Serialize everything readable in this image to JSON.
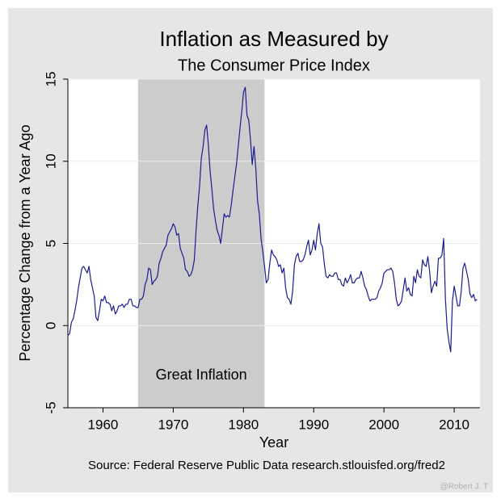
{
  "chart_data": {
    "type": "line",
    "title": "Inflation as Measured by",
    "subtitle": "The Consumer Price Index",
    "xlabel": "Year",
    "ylabel": "Percentage Change from a Year Ago",
    "source": "Source: Federal Reserve Public Data research.stlouisfed.org/fred2",
    "watermark": "@Robert J. T",
    "color": "#1c1c8f",
    "grid": true,
    "xlim": [
      1955,
      2013.67
    ],
    "ylim": [
      -5,
      15
    ],
    "xticks": [
      1960,
      1970,
      1980,
      1990,
      2000,
      2010
    ],
    "yticks": [
      -5,
      0,
      5,
      10,
      15
    ],
    "shaded_region": {
      "label": "Great Inflation",
      "xrange": [
        1965,
        1983
      ],
      "color": "#cccccc"
    },
    "x": [
      1955,
      1955.25,
      1955.5,
      1955.75,
      1956,
      1956.25,
      1956.5,
      1956.75,
      1957,
      1957.25,
      1957.5,
      1957.75,
      1958,
      1958.25,
      1958.5,
      1958.75,
      1959,
      1959.25,
      1959.5,
      1959.75,
      1960,
      1960.25,
      1960.5,
      1960.75,
      1961,
      1961.25,
      1961.5,
      1961.75,
      1962,
      1962.25,
      1962.5,
      1962.75,
      1963,
      1963.25,
      1963.5,
      1963.75,
      1964,
      1964.25,
      1964.5,
      1964.75,
      1965,
      1965.25,
      1965.5,
      1965.75,
      1966,
      1966.25,
      1966.5,
      1966.75,
      1967,
      1967.25,
      1967.5,
      1967.75,
      1968,
      1968.25,
      1968.5,
      1968.75,
      1969,
      1969.25,
      1969.5,
      1969.75,
      1970,
      1970.25,
      1970.5,
      1970.75,
      1971,
      1971.25,
      1971.5,
      1971.75,
      1972,
      1972.25,
      1972.5,
      1972.75,
      1973,
      1973.25,
      1973.5,
      1973.75,
      1974,
      1974.25,
      1974.5,
      1974.75,
      1975,
      1975.25,
      1975.5,
      1975.75,
      1976,
      1976.25,
      1976.5,
      1976.75,
      1977,
      1977.25,
      1977.5,
      1977.75,
      1978,
      1978.25,
      1978.5,
      1978.75,
      1979,
      1979.25,
      1979.5,
      1979.75,
      1980,
      1980.25,
      1980.5,
      1980.75,
      1981,
      1981.25,
      1981.5,
      1981.75,
      1982,
      1982.25,
      1982.5,
      1982.75,
      1983,
      1983.25,
      1983.5,
      1983.75,
      1984,
      1984.25,
      1984.5,
      1984.75,
      1985,
      1985.25,
      1985.5,
      1985.75,
      1986,
      1986.25,
      1986.5,
      1986.75,
      1987,
      1987.25,
      1987.5,
      1987.75,
      1988,
      1988.25,
      1988.5,
      1988.75,
      1989,
      1989.25,
      1989.5,
      1989.75,
      1990,
      1990.25,
      1990.5,
      1990.75,
      1991,
      1991.25,
      1991.5,
      1991.75,
      1992,
      1992.25,
      1992.5,
      1992.75,
      1993,
      1993.25,
      1993.5,
      1993.75,
      1994,
      1994.25,
      1994.5,
      1994.75,
      1995,
      1995.25,
      1995.5,
      1995.75,
      1996,
      1996.25,
      1996.5,
      1996.75,
      1997,
      1997.25,
      1997.5,
      1997.75,
      1998,
      1998.25,
      1998.5,
      1998.75,
      1999,
      1999.25,
      1999.5,
      1999.75,
      2000,
      2000.25,
      2000.5,
      2000.75,
      2001,
      2001.25,
      2001.5,
      2001.75,
      2002,
      2002.25,
      2002.5,
      2002.75,
      2003,
      2003.25,
      2003.5,
      2003.75,
      2004,
      2004.25,
      2004.5,
      2004.75,
      2005,
      2005.25,
      2005.5,
      2005.75,
      2006,
      2006.25,
      2006.5,
      2006.75,
      2007,
      2007.25,
      2007.5,
      2007.75,
      2008,
      2008.25,
      2008.5,
      2008.75,
      2009,
      2009.25,
      2009.5,
      2009.75,
      2010,
      2010.25,
      2010.5,
      2010.75,
      2011,
      2011.25,
      2011.5,
      2011.75,
      2012,
      2012.25,
      2012.5,
      2012.75,
      2013,
      2013.25
    ],
    "values": [
      -0.6,
      -0.5,
      0.2,
      0.4,
      0.9,
      1.5,
      2.3,
      2.9,
      3.5,
      3.6,
      3.4,
      3.2,
      3.6,
      2.8,
      2.3,
      1.8,
      0.5,
      0.3,
      0.9,
      1.6,
      1.5,
      1.8,
      1.4,
      1.4,
      1.3,
      0.9,
      1.2,
      0.7,
      0.9,
      1.2,
      1.2,
      1.3,
      1.1,
      1.3,
      1.3,
      1.6,
      1.6,
      1.2,
      1.2,
      1.1,
      1.1,
      1.6,
      1.6,
      1.8,
      2.5,
      2.8,
      3.5,
      3.4,
      2.5,
      2.7,
      2.8,
      3.0,
      3.8,
      4.1,
      4.5,
      4.7,
      4.9,
      5.5,
      5.7,
      5.9,
      6.2,
      6.0,
      5.5,
      5.6,
      4.7,
      4.4,
      4.1,
      3.4,
      3.3,
      3.0,
      3.1,
      3.4,
      4.0,
      5.8,
      7.3,
      8.5,
      10.2,
      10.9,
      11.9,
      12.2,
      11.0,
      9.4,
      8.3,
      7.1,
      6.4,
      5.8,
      5.5,
      5.0,
      5.9,
      6.8,
      6.6,
      6.7,
      6.6,
      7.3,
      8.2,
      9.0,
      9.8,
      10.9,
      12.0,
      13.0,
      14.2,
      14.5,
      12.8,
      12.5,
      11.3,
      9.8,
      10.9,
      9.6,
      7.6,
      6.8,
      5.3,
      4.5,
      3.6,
      2.6,
      2.8,
      3.8,
      4.6,
      4.3,
      4.2,
      4.0,
      3.6,
      3.7,
      3.2,
      3.5,
      2.3,
      1.7,
      1.6,
      1.3,
      2.1,
      3.7,
      4.2,
      4.4,
      3.9,
      3.9,
      4.0,
      4.3,
      4.8,
      5.2,
      4.3,
      4.6,
      5.2,
      4.6,
      5.6,
      6.2,
      5.0,
      4.8,
      3.8,
      3.0,
      2.9,
      3.1,
      3.0,
      3.0,
      3.2,
      3.2,
      2.8,
      2.8,
      2.5,
      2.4,
      2.9,
      2.6,
      2.8,
      3.1,
      2.6,
      2.6,
      2.8,
      2.9,
      2.9,
      3.3,
      2.9,
      2.4,
      2.2,
      1.8,
      1.5,
      1.6,
      1.6,
      1.6,
      1.7,
      2.1,
      2.3,
      2.6,
      3.2,
      3.3,
      3.4,
      3.4,
      3.5,
      3.3,
      2.6,
      1.6,
      1.2,
      1.3,
      1.5,
      2.2,
      2.9,
      2.1,
      2.3,
      1.9,
      1.8,
      3.0,
      2.6,
      3.4,
      3.0,
      2.9,
      4.0,
      3.7,
      3.6,
      4.2,
      3.3,
      2.0,
      2.4,
      2.7,
      2.4,
      4.1,
      4.1,
      4.3,
      5.3,
      1.6,
      -0.2,
      -1.0,
      -1.6,
      1.5,
      2.4,
      1.8,
      1.2,
      1.2,
      2.1,
      3.5,
      3.8,
      3.3,
      2.8,
      1.9,
      1.7,
      1.9,
      1.5,
      1.6
    ]
  }
}
